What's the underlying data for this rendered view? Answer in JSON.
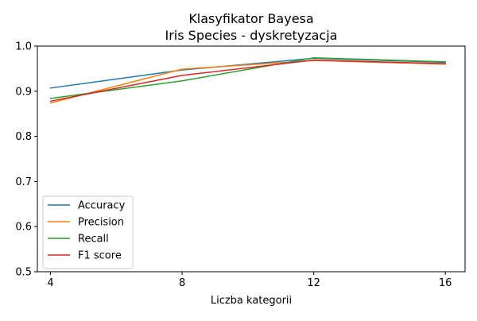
{
  "chart_data": {
    "type": "line",
    "title": "Klasyfikator Bayesa",
    "subtitle": "Iris Species - dyskretyzacja",
    "xlabel": "Liczba kategorii",
    "ylabel": "",
    "x": [
      4,
      8,
      12,
      16
    ],
    "xticks": [
      "4",
      "8",
      "12",
      "16"
    ],
    "xlim": [
      3.6,
      16.6
    ],
    "ylim": [
      0.5,
      1.0
    ],
    "yticks": [
      "0.5",
      "0.6",
      "0.7",
      "0.8",
      "0.9",
      "1.0"
    ],
    "grid": false,
    "legend_position": "lower-left",
    "series": [
      {
        "name": "Accuracy",
        "color": "#1f77b4",
        "values": [
          0.907,
          0.947,
          0.973,
          0.964
        ]
      },
      {
        "name": "Precision",
        "color": "#ff7f0e",
        "values": [
          0.874,
          0.949,
          0.968,
          0.96
        ]
      },
      {
        "name": "Recall",
        "color": "#2ca02c",
        "values": [
          0.884,
          0.923,
          0.974,
          0.965
        ]
      },
      {
        "name": "F1 score",
        "color": "#d62728",
        "values": [
          0.878,
          0.935,
          0.969,
          0.961
        ]
      }
    ]
  }
}
